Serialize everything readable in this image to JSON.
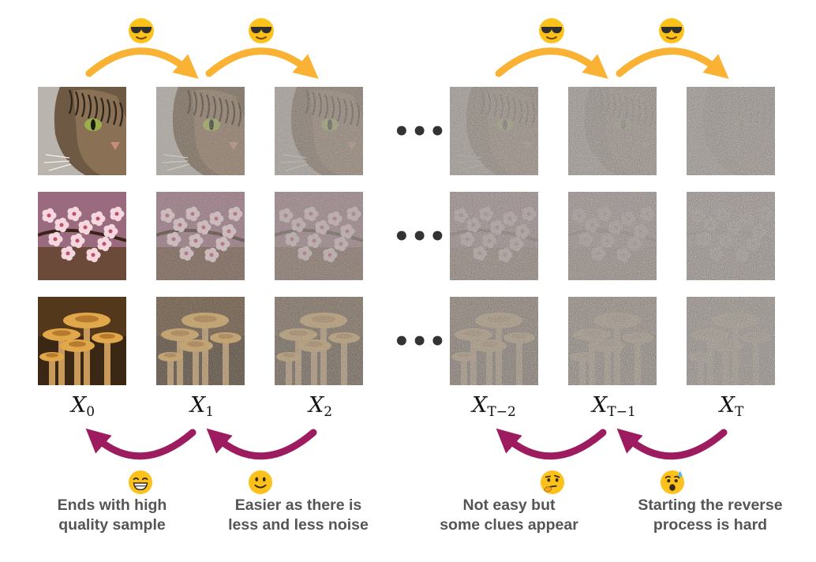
{
  "labels": [
    {
      "base": "X",
      "sub": "0"
    },
    {
      "base": "X",
      "sub": "1"
    },
    {
      "base": "X",
      "sub": "2"
    },
    {
      "base": "X",
      "sub": "T−2"
    },
    {
      "base": "X",
      "sub": "T−1"
    },
    {
      "base": "X",
      "sub": "T"
    }
  ],
  "ellipsis": "•••",
  "rows": [
    {
      "subject": "cat",
      "noise_levels": [
        0.0,
        0.35,
        0.6,
        0.82,
        0.93,
        1.0
      ]
    },
    {
      "subject": "blossom",
      "noise_levels": [
        0.0,
        0.35,
        0.6,
        0.82,
        0.93,
        1.0
      ]
    },
    {
      "subject": "mushroom",
      "noise_levels": [
        0.0,
        0.35,
        0.6,
        0.82,
        0.93,
        1.0
      ]
    }
  ],
  "captions": [
    {
      "line1": "Ends with high",
      "line2": "quality sample",
      "emoji": "grinning-face-icon"
    },
    {
      "line1": "Easier as there is",
      "line2": "less and less noise",
      "emoji": "smiling-face-icon"
    },
    {
      "line1": "Not easy but",
      "line2": "some clues appear",
      "emoji": "thinking-face-icon"
    },
    {
      "line1": "Starting the reverse",
      "line2": "process is hard",
      "emoji": "anxious-sweat-face-icon"
    }
  ],
  "forward_emoji": "sunglasses-face-icon",
  "colors": {
    "forward_arrow": "#f9b233",
    "reverse_arrow": "#9c1c5f",
    "emoji_yellow": "#fcc21b",
    "caption_text": "#555555"
  }
}
